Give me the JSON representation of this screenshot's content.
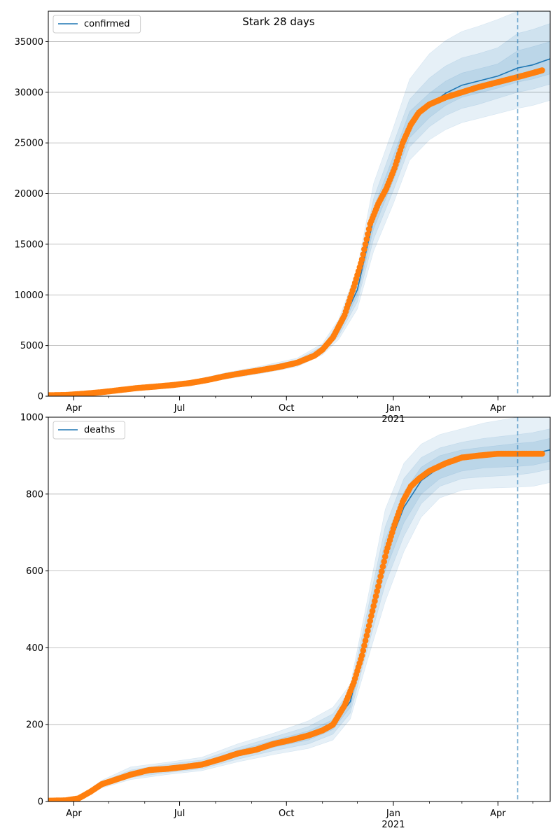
{
  "title": "Stark 28 days",
  "colors": {
    "line": "#1f77b4",
    "points": "#ff7f0e",
    "band": "#1f77b4",
    "grid": "#b0b0b0",
    "cutoff": "#1f77b4"
  },
  "x_axis": {
    "ticks": [
      {
        "date": "2020-04-01",
        "label": "Apr",
        "sublabel": ""
      },
      {
        "date": "2020-07-01",
        "label": "Jul",
        "sublabel": ""
      },
      {
        "date": "2020-10-01",
        "label": "Oct",
        "sublabel": ""
      },
      {
        "date": "2021-01-01",
        "label": "Jan",
        "sublabel": "2021"
      },
      {
        "date": "2021-04-01",
        "label": "Apr",
        "sublabel": ""
      }
    ],
    "range": [
      "2020-03-10",
      "2021-05-16"
    ]
  },
  "chart_data": [
    {
      "type": "line",
      "legend": "confirmed",
      "legend_position": "top-left",
      "ylim": [
        0,
        38000
      ],
      "yticks": [
        0,
        5000,
        10000,
        15000,
        20000,
        25000,
        30000,
        35000
      ],
      "grid": "horizontal",
      "forecast_cutoff": "2021-04-18",
      "observed": {
        "x": [
          "2020-03-10",
          "2020-03-25",
          "2020-04-10",
          "2020-04-25",
          "2020-05-10",
          "2020-05-25",
          "2020-06-10",
          "2020-06-25",
          "2020-07-10",
          "2020-07-25",
          "2020-08-10",
          "2020-08-25",
          "2020-09-10",
          "2020-09-25",
          "2020-10-10",
          "2020-10-25",
          "2020-11-01",
          "2020-11-10",
          "2020-11-20",
          "2020-11-28",
          "2020-12-05",
          "2020-12-12",
          "2020-12-19",
          "2020-12-26",
          "2021-01-02",
          "2021-01-09",
          "2021-01-16",
          "2021-01-23",
          "2021-02-01",
          "2021-02-15",
          "2021-03-01",
          "2021-03-15",
          "2021-04-01",
          "2021-04-18",
          "2021-05-01",
          "2021-05-10"
        ],
        "y": [
          100,
          120,
          250,
          400,
          600,
          800,
          950,
          1100,
          1300,
          1600,
          2000,
          2300,
          2600,
          2900,
          3300,
          4000,
          4600,
          5800,
          8000,
          10800,
          13500,
          17000,
          19000,
          20500,
          22500,
          25000,
          26800,
          28000,
          28800,
          29500,
          30000,
          30500,
          31000,
          31500,
          31900,
          32200
        ]
      },
      "fit": {
        "x": [
          "2020-03-10",
          "2020-04-10",
          "2020-05-10",
          "2020-06-10",
          "2020-07-10",
          "2020-08-10",
          "2020-09-10",
          "2020-10-10",
          "2020-11-01",
          "2020-11-15",
          "2020-12-01",
          "2020-12-15",
          "2021-01-01",
          "2021-01-15",
          "2021-02-01",
          "2021-02-15",
          "2021-03-01",
          "2021-03-15",
          "2021-04-01",
          "2021-04-18",
          "2021-05-01",
          "2021-05-16"
        ],
        "y": [
          100,
          250,
          600,
          950,
          1300,
          2000,
          2600,
          3300,
          4600,
          6500,
          10500,
          17500,
          22500,
          26800,
          28700,
          29900,
          30700,
          31100,
          31600,
          32400,
          32700,
          33300
        ],
        "bands": [
          {
            "lower": [
              60,
              180,
              480,
              800,
              1100,
              1700,
              2250,
              2900,
              4100,
              5600,
              8600,
              14300,
              19000,
              23300,
              25300,
              26300,
              27000,
              27400,
              27900,
              28400,
              28700,
              29200
            ],
            "upper": [
              150,
              330,
              740,
              1110,
              1520,
              2320,
              3000,
              3750,
              5200,
              7600,
              12600,
              21000,
              26500,
              31300,
              33800,
              35100,
              36000,
              36500,
              37200,
              38000,
              38400,
              39000
            ]
          },
          {
            "lower": [
              75,
              205,
              520,
              850,
              1170,
              1800,
              2380,
              3050,
              4300,
              5950,
              9300,
              15500,
              20300,
              24600,
              26600,
              27700,
              28400,
              28800,
              29400,
              30000,
              30300,
              30800
            ],
            "upper": [
              130,
              295,
              680,
              1050,
              1430,
              2200,
              2850,
              3570,
              4950,
              7200,
              11800,
              19500,
              24900,
              29300,
              31400,
              32600,
              33400,
              33800,
              34400,
              35800,
              36200,
              36800
            ]
          },
          {
            "lower": [
              88,
              225,
              560,
              900,
              1230,
              1900,
              2480,
              3170,
              4450,
              6200,
              9900,
              16500,
              21300,
              25500,
              27500,
              28700,
              29500,
              29900,
              30400,
              31000,
              31300,
              31800
            ],
            "upper": [
              115,
              275,
              640,
              1000,
              1370,
              2100,
              2720,
              3430,
              4750,
              6800,
              11100,
              18500,
              23700,
              28100,
              29900,
              31100,
              31900,
              32300,
              32800,
              34100,
              34500,
              35000
            ]
          }
        ]
      }
    },
    {
      "type": "line",
      "legend": "deaths",
      "legend_position": "top-left",
      "ylim": [
        0,
        1000
      ],
      "yticks": [
        0,
        200,
        400,
        600,
        800,
        1000
      ],
      "grid": "horizontal",
      "forecast_cutoff": "2021-04-18",
      "observed": {
        "x": [
          "2020-03-10",
          "2020-03-25",
          "2020-04-05",
          "2020-04-15",
          "2020-04-25",
          "2020-05-05",
          "2020-05-20",
          "2020-06-05",
          "2020-06-20",
          "2020-07-05",
          "2020-07-20",
          "2020-08-05",
          "2020-08-20",
          "2020-09-05",
          "2020-09-20",
          "2020-10-05",
          "2020-10-20",
          "2020-11-01",
          "2020-11-10",
          "2020-11-20",
          "2020-11-28",
          "2020-12-05",
          "2020-12-12",
          "2020-12-19",
          "2020-12-26",
          "2021-01-02",
          "2021-01-09",
          "2021-01-16",
          "2021-01-23",
          "2021-02-01",
          "2021-02-15",
          "2021-03-01",
          "2021-03-15",
          "2021-04-01",
          "2021-04-18",
          "2021-05-01",
          "2021-05-10"
        ],
        "y": [
          2,
          3,
          8,
          25,
          45,
          55,
          70,
          82,
          85,
          90,
          96,
          110,
          125,
          135,
          150,
          160,
          172,
          185,
          200,
          250,
          310,
          380,
          470,
          560,
          650,
          720,
          780,
          820,
          840,
          860,
          880,
          895,
          900,
          905,
          905,
          905,
          905
        ]
      },
      "fit": {
        "x": [
          "2020-03-10",
          "2020-04-05",
          "2020-04-25",
          "2020-05-20",
          "2020-06-20",
          "2020-07-20",
          "2020-08-20",
          "2020-09-20",
          "2020-10-20",
          "2020-11-10",
          "2020-11-25",
          "2020-12-10",
          "2020-12-25",
          "2021-01-10",
          "2021-01-25",
          "2021-02-10",
          "2021-03-01",
          "2021-03-20",
          "2021-04-18",
          "2021-05-01",
          "2021-05-16"
        ],
        "y": [
          2,
          8,
          45,
          72,
          86,
          96,
          125,
          150,
          172,
          200,
          260,
          450,
          640,
          765,
          835,
          870,
          890,
          897,
          902,
          905,
          915
        ],
        "bands": [
          {
            "lower": [
              1,
              5,
              35,
              57,
              70,
              80,
              103,
              122,
              138,
              160,
              215,
              370,
              520,
              650,
              740,
              790,
              810,
              815,
              818,
              820,
              830
            ],
            "upper": [
              4,
              12,
              55,
              90,
              102,
              115,
              150,
              178,
              210,
              245,
              305,
              530,
              760,
              880,
              930,
              955,
              970,
              985,
              1000,
              1005,
              1010
            ]
          },
          {
            "lower": [
              1,
              6,
              39,
              62,
              75,
              85,
              110,
              132,
              150,
              175,
              230,
              400,
              565,
              690,
              775,
              820,
              840,
              845,
              850,
              855,
              865
            ],
            "upper": [
              3,
              10,
              51,
              82,
              97,
              108,
              140,
              168,
              195,
              228,
              290,
              500,
              715,
              840,
              895,
              920,
              935,
              945,
              955,
              960,
              970
            ]
          },
          {
            "lower": [
              1,
              7,
              42,
              67,
              80,
              90,
              117,
              141,
              160,
              187,
              245,
              425,
              600,
              725,
              800,
              840,
              860,
              868,
              872,
              875,
              885
            ],
            "upper": [
              3,
              9,
              48,
              77,
              92,
              102,
              133,
              159,
              184,
              213,
              275,
              475,
              680,
              805,
              870,
              900,
              915,
              922,
              932,
              935,
              945
            ]
          }
        ]
      }
    }
  ]
}
